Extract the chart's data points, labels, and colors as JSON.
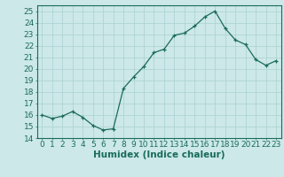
{
  "x": [
    0,
    1,
    2,
    3,
    4,
    5,
    6,
    7,
    8,
    9,
    10,
    11,
    12,
    13,
    14,
    15,
    16,
    17,
    18,
    19,
    20,
    21,
    22,
    23
  ],
  "y": [
    16.0,
    15.7,
    15.9,
    16.3,
    15.8,
    15.1,
    14.7,
    14.8,
    18.3,
    19.3,
    20.2,
    21.4,
    21.7,
    22.9,
    23.1,
    23.7,
    24.5,
    25.0,
    23.5,
    22.5,
    22.1,
    20.8,
    20.3,
    20.7
  ],
  "xlabel": "Humidex (Indice chaleur)",
  "ylim": [
    14,
    25.5
  ],
  "xlim": [
    -0.5,
    23.5
  ],
  "yticks": [
    14,
    15,
    16,
    17,
    18,
    19,
    20,
    21,
    22,
    23,
    24,
    25
  ],
  "xticks": [
    0,
    1,
    2,
    3,
    4,
    5,
    6,
    7,
    8,
    9,
    10,
    11,
    12,
    13,
    14,
    15,
    16,
    17,
    18,
    19,
    20,
    21,
    22,
    23
  ],
  "line_color": "#1a6b5a",
  "marker": "+",
  "bg_color": "#cce8e8",
  "grid_color": "#aad0d0",
  "tick_color": "#1a6b5a",
  "label_color": "#1a6b5a",
  "font_size": 6.5,
  "xlabel_fontsize": 7.5
}
